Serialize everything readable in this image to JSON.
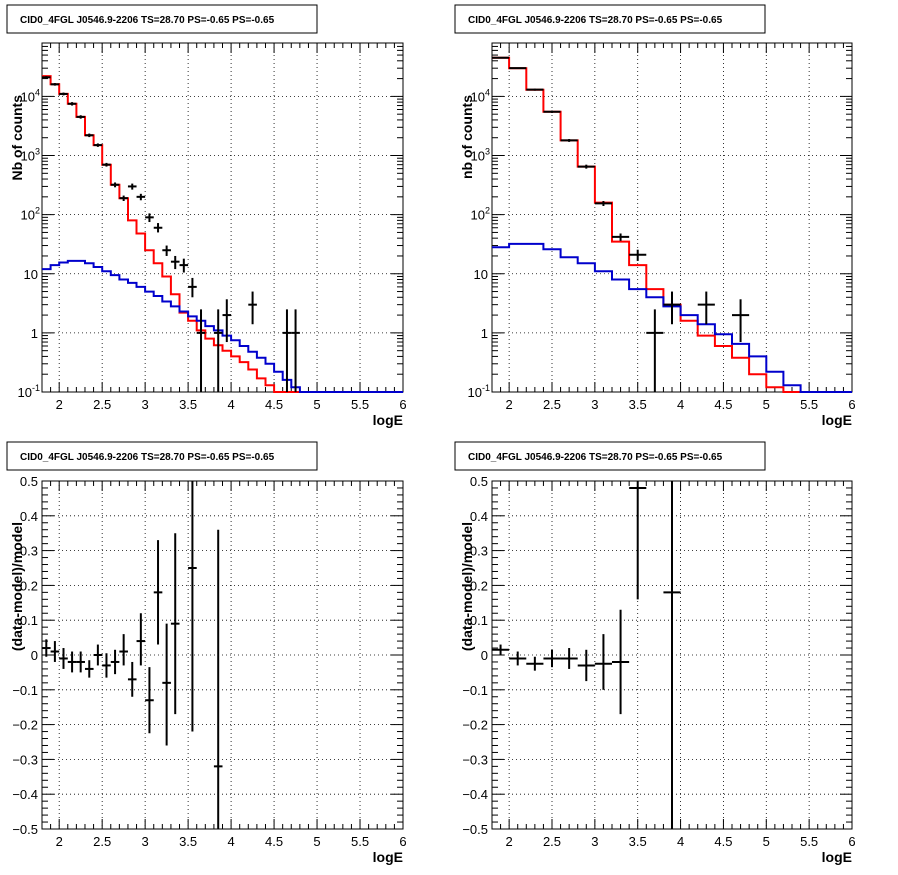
{
  "chart_data": [
    {
      "type": "line",
      "title": "CID0_4FGL J0546.9-2206 TS=28.70 PS=-0.65 PS=-0.65",
      "xlabel": "logE",
      "ylabel": "Nb of counts",
      "xlim": [
        1.8,
        6.0
      ],
      "ylim": [
        0.1,
        80000
      ],
      "yscale": "log",
      "grid": true,
      "x_ticks": [
        "2",
        "2.5",
        "3",
        "3.5",
        "4",
        "4.5",
        "5",
        "5.5",
        "6"
      ],
      "y_ticks": [
        "10^-1",
        "1",
        "10",
        "10^2",
        "10^3",
        "10^4"
      ],
      "bin_edges": [
        1.8,
        1.9,
        2.0,
        2.1,
        2.2,
        2.3,
        2.4,
        2.5,
        2.6,
        2.7,
        2.8,
        2.9,
        3.0,
        3.1,
        3.2,
        3.3,
        3.4,
        3.5,
        3.6,
        3.7,
        3.8,
        3.9,
        4.0,
        4.1,
        4.2,
        4.3,
        4.4,
        4.5,
        4.6,
        4.7,
        4.8,
        4.9,
        5.0,
        5.1,
        5.2,
        5.3,
        5.4,
        5.5,
        5.6,
        5.7,
        5.8,
        5.9,
        6.0
      ],
      "series": [
        {
          "name": "",
          "color": "#ff0000",
          "style": "step",
          "values": [
            22000,
            16000,
            11000,
            7500,
            4500,
            2200,
            1500,
            700,
            320,
            190,
            80,
            48,
            25,
            15,
            9,
            4.5,
            2.2,
            1.6,
            1.1,
            0.8,
            0.62,
            0.5,
            0.4,
            0.32,
            0.24,
            0.17,
            0.13,
            0.1,
            0.1,
            0.1,
            0.1,
            0.1,
            0.1,
            0.1,
            0.1,
            0.1,
            0.1,
            0.1,
            0.1,
            0.1,
            0.1,
            0.1
          ]
        },
        {
          "name": "",
          "color": "#0000cc",
          "style": "step",
          "values": [
            12,
            14,
            15.5,
            16.5,
            16.5,
            15,
            13,
            11,
            9.5,
            8,
            7,
            6,
            5,
            4.2,
            3.4,
            2.8,
            2.3,
            1.9,
            1.6,
            1.3,
            1.1,
            0.9,
            0.75,
            0.6,
            0.48,
            0.38,
            0.3,
            0.22,
            0.16,
            0.12,
            0.1,
            0.1,
            0.1,
            0.1,
            0.1,
            0.1,
            0.1,
            0.1,
            0.1,
            0.1,
            0.1,
            0.1
          ]
        }
      ],
      "points": [
        {
          "x": 1.85,
          "y": 21000,
          "ylo": 20000,
          "yhi": 22000
        },
        {
          "x": 1.95,
          "y": 16000,
          "ylo": 15200,
          "yhi": 16800
        },
        {
          "x": 2.05,
          "y": 11000,
          "ylo": 10400,
          "yhi": 11600
        },
        {
          "x": 2.15,
          "y": 7500,
          "ylo": 7000,
          "yhi": 8000
        },
        {
          "x": 2.25,
          "y": 4500,
          "ylo": 4200,
          "yhi": 4800
        },
        {
          "x": 2.35,
          "y": 2200,
          "ylo": 2050,
          "yhi": 2350
        },
        {
          "x": 2.45,
          "y": 1500,
          "ylo": 1400,
          "yhi": 1600
        },
        {
          "x": 2.55,
          "y": 700,
          "ylo": 650,
          "yhi": 750
        },
        {
          "x": 2.65,
          "y": 320,
          "ylo": 290,
          "yhi": 350
        },
        {
          "x": 2.75,
          "y": 190,
          "ylo": 170,
          "yhi": 210
        },
        {
          "x": 2.85,
          "y": 300,
          "ylo": 265,
          "yhi": 335
        },
        {
          "x": 2.95,
          "y": 200,
          "ylo": 175,
          "yhi": 225
        },
        {
          "x": 3.05,
          "y": 90,
          "ylo": 75,
          "yhi": 105
        },
        {
          "x": 3.15,
          "y": 60,
          "ylo": 50,
          "yhi": 72
        },
        {
          "x": 3.25,
          "y": 25,
          "ylo": 20,
          "yhi": 30
        },
        {
          "x": 3.35,
          "y": 16,
          "ylo": 12,
          "yhi": 20
        },
        {
          "x": 3.45,
          "y": 14,
          "ylo": 10.5,
          "yhi": 18
        },
        {
          "x": 3.55,
          "y": 6,
          "ylo": 4,
          "yhi": 8.5
        },
        {
          "x": 3.65,
          "y": 1,
          "ylo": 0.1,
          "yhi": 2.5
        },
        {
          "x": 3.85,
          "y": 1,
          "ylo": 0.1,
          "yhi": 2.5
        },
        {
          "x": 3.95,
          "y": 2,
          "ylo": 0.7,
          "yhi": 3.7
        },
        {
          "x": 4.25,
          "y": 3,
          "ylo": 1.4,
          "yhi": 5
        },
        {
          "x": 4.65,
          "y": 1,
          "ylo": 0.1,
          "yhi": 2.5
        },
        {
          "x": 4.75,
          "y": 1,
          "ylo": 0.1,
          "yhi": 2.5
        }
      ]
    },
    {
      "type": "line",
      "title": "CID0_4FGL J0546.9-2206 TS=28.70 PS=-0.65 PS=-0.65",
      "xlabel": "logE",
      "ylabel": "nb of counts",
      "xlim": [
        1.8,
        6.0
      ],
      "ylim": [
        0.1,
        80000
      ],
      "yscale": "log",
      "grid": true,
      "x_ticks": [
        "2",
        "2.5",
        "3",
        "3.5",
        "4",
        "4.5",
        "5",
        "5.5",
        "6"
      ],
      "y_ticks": [
        "10^-1",
        "1",
        "10",
        "10^2",
        "10^3",
        "10^4"
      ],
      "bin_edges": [
        1.8,
        2.0,
        2.2,
        2.4,
        2.6,
        2.8,
        3.0,
        3.2,
        3.4,
        3.6,
        3.8,
        4.0,
        4.2,
        4.4,
        4.6,
        4.8,
        5.0,
        5.2,
        5.4,
        5.6,
        5.8,
        6.0
      ],
      "series": [
        {
          "name": "",
          "color": "#ff0000",
          "style": "step",
          "values": [
            45000,
            30000,
            13000,
            5500,
            1800,
            650,
            160,
            35,
            14,
            5.5,
            3,
            1.6,
            0.9,
            0.6,
            0.38,
            0.2,
            0.12,
            0.1,
            0.1,
            0.1,
            0.1
          ]
        },
        {
          "name": "",
          "color": "#0000cc",
          "style": "step",
          "values": [
            28,
            32,
            32,
            26,
            19,
            15,
            11,
            8,
            5.5,
            4,
            2.8,
            2,
            1.4,
            0.95,
            0.65,
            0.4,
            0.22,
            0.13,
            0.1,
            0.1,
            0.1
          ]
        }
      ],
      "points": [
        {
          "x": 1.9,
          "y": 45000,
          "ylo": 44000,
          "yhi": 46000
        },
        {
          "x": 2.1,
          "y": 30000,
          "ylo": 29200,
          "yhi": 30800
        },
        {
          "x": 2.3,
          "y": 13000,
          "ylo": 12500,
          "yhi": 13500
        },
        {
          "x": 2.5,
          "y": 5500,
          "ylo": 5250,
          "yhi": 5750
        },
        {
          "x": 2.7,
          "y": 1800,
          "ylo": 1700,
          "yhi": 1900
        },
        {
          "x": 2.9,
          "y": 650,
          "ylo": 600,
          "yhi": 700
        },
        {
          "x": 3.1,
          "y": 155,
          "ylo": 140,
          "yhi": 170
        },
        {
          "x": 3.3,
          "y": 42,
          "ylo": 36,
          "yhi": 48
        },
        {
          "x": 3.5,
          "y": 21,
          "ylo": 16.5,
          "yhi": 25.5
        },
        {
          "x": 3.7,
          "y": 1,
          "ylo": 0.1,
          "yhi": 2.5
        },
        {
          "x": 3.9,
          "y": 3,
          "ylo": 1.4,
          "yhi": 5
        },
        {
          "x": 4.3,
          "y": 3,
          "ylo": 1.4,
          "yhi": 5
        },
        {
          "x": 4.7,
          "y": 2,
          "ylo": 0.7,
          "yhi": 3.7
        }
      ]
    },
    {
      "type": "scatter",
      "title": "CID0_4FGL J0546.9-2206 TS=28.70 PS=-0.65 PS=-0.65",
      "xlabel": "logE",
      "ylabel": "(data-model)/model",
      "xlim": [
        1.8,
        6.0
      ],
      "ylim": [
        -0.5,
        0.5
      ],
      "grid": true,
      "x_ticks": [
        "2",
        "2.5",
        "3",
        "3.5",
        "4",
        "4.5",
        "5",
        "5.5",
        "6"
      ],
      "y_ticks": [
        "−0.5",
        "−0.4",
        "−0.3",
        "−0.2",
        "−0.1",
        "0",
        "0.1",
        "0.2",
        "0.3",
        "0.4",
        "0.5"
      ],
      "points": [
        {
          "x": 1.85,
          "y": 0.02,
          "ylo": -0.005,
          "yhi": 0.045,
          "dx": 0.05
        },
        {
          "x": 1.95,
          "y": 0.01,
          "ylo": -0.02,
          "yhi": 0.04,
          "dx": 0.05
        },
        {
          "x": 2.05,
          "y": -0.01,
          "ylo": -0.04,
          "yhi": 0.02,
          "dx": 0.05
        },
        {
          "x": 2.15,
          "y": -0.02,
          "ylo": -0.05,
          "yhi": 0.01,
          "dx": 0.05
        },
        {
          "x": 2.25,
          "y": -0.02,
          "ylo": -0.05,
          "yhi": 0.01,
          "dx": 0.05
        },
        {
          "x": 2.35,
          "y": -0.04,
          "ylo": -0.065,
          "yhi": -0.015,
          "dx": 0.05
        },
        {
          "x": 2.45,
          "y": 0.0,
          "ylo": -0.03,
          "yhi": 0.03,
          "dx": 0.05
        },
        {
          "x": 2.55,
          "y": -0.03,
          "ylo": -0.065,
          "yhi": 0.005,
          "dx": 0.05
        },
        {
          "x": 2.65,
          "y": -0.02,
          "ylo": -0.055,
          "yhi": 0.015,
          "dx": 0.05
        },
        {
          "x": 2.75,
          "y": 0.01,
          "ylo": -0.03,
          "yhi": 0.06,
          "dx": 0.05
        },
        {
          "x": 2.85,
          "y": -0.07,
          "ylo": -0.12,
          "yhi": -0.02,
          "dx": 0.05
        },
        {
          "x": 2.95,
          "y": 0.04,
          "ylo": -0.03,
          "yhi": 0.12,
          "dx": 0.05
        },
        {
          "x": 3.05,
          "y": -0.13,
          "ylo": -0.225,
          "yhi": -0.035,
          "dx": 0.05
        },
        {
          "x": 3.15,
          "y": 0.18,
          "ylo": 0.03,
          "yhi": 0.33,
          "dx": 0.05
        },
        {
          "x": 3.25,
          "y": -0.08,
          "ylo": -0.26,
          "yhi": 0.09,
          "dx": 0.05
        },
        {
          "x": 3.35,
          "y": 0.09,
          "ylo": -0.17,
          "yhi": 0.35,
          "dx": 0.05
        },
        {
          "x": 3.55,
          "y": 0.25,
          "ylo": -0.22,
          "yhi": 0.5,
          "dx": 0.05
        },
        {
          "x": 3.85,
          "y": -0.32,
          "ylo": -0.5,
          "yhi": 0.36,
          "dx": 0.05
        }
      ]
    },
    {
      "type": "scatter",
      "title": "CID0_4FGL J0546.9-2206 TS=28.70 PS=-0.65 PS=-0.65",
      "xlabel": "logE",
      "ylabel": "(data-model)/model",
      "xlim": [
        1.8,
        6.0
      ],
      "ylim": [
        -0.5,
        0.5
      ],
      "grid": true,
      "x_ticks": [
        "2",
        "2.5",
        "3",
        "3.5",
        "4",
        "4.5",
        "5",
        "5.5",
        "6"
      ],
      "y_ticks": [
        "−0.5",
        "−0.4",
        "−0.3",
        "−0.2",
        "−0.1",
        "0",
        "0.1",
        "0.2",
        "0.3",
        "0.4",
        "0.5"
      ],
      "points": [
        {
          "x": 1.9,
          "y": 0.015,
          "ylo": 0.0,
          "yhi": 0.03,
          "dx": 0.1
        },
        {
          "x": 2.1,
          "y": -0.01,
          "ylo": -0.03,
          "yhi": 0.01,
          "dx": 0.1
        },
        {
          "x": 2.3,
          "y": -0.025,
          "ylo": -0.045,
          "yhi": -0.005,
          "dx": 0.1
        },
        {
          "x": 2.5,
          "y": -0.01,
          "ylo": -0.035,
          "yhi": 0.015,
          "dx": 0.1
        },
        {
          "x": 2.7,
          "y": -0.01,
          "ylo": -0.04,
          "yhi": 0.02,
          "dx": 0.1
        },
        {
          "x": 2.9,
          "y": -0.03,
          "ylo": -0.075,
          "yhi": 0.015,
          "dx": 0.1
        },
        {
          "x": 3.1,
          "y": -0.025,
          "ylo": -0.1,
          "yhi": 0.06,
          "dx": 0.1
        },
        {
          "x": 3.3,
          "y": -0.02,
          "ylo": -0.17,
          "yhi": 0.13,
          "dx": 0.1
        },
        {
          "x": 3.5,
          "y": 0.48,
          "ylo": 0.16,
          "yhi": 0.5,
          "dx": 0.1
        },
        {
          "x": 3.9,
          "y": 0.18,
          "ylo": -0.5,
          "yhi": 0.5,
          "dx": 0.1
        }
      ]
    }
  ]
}
